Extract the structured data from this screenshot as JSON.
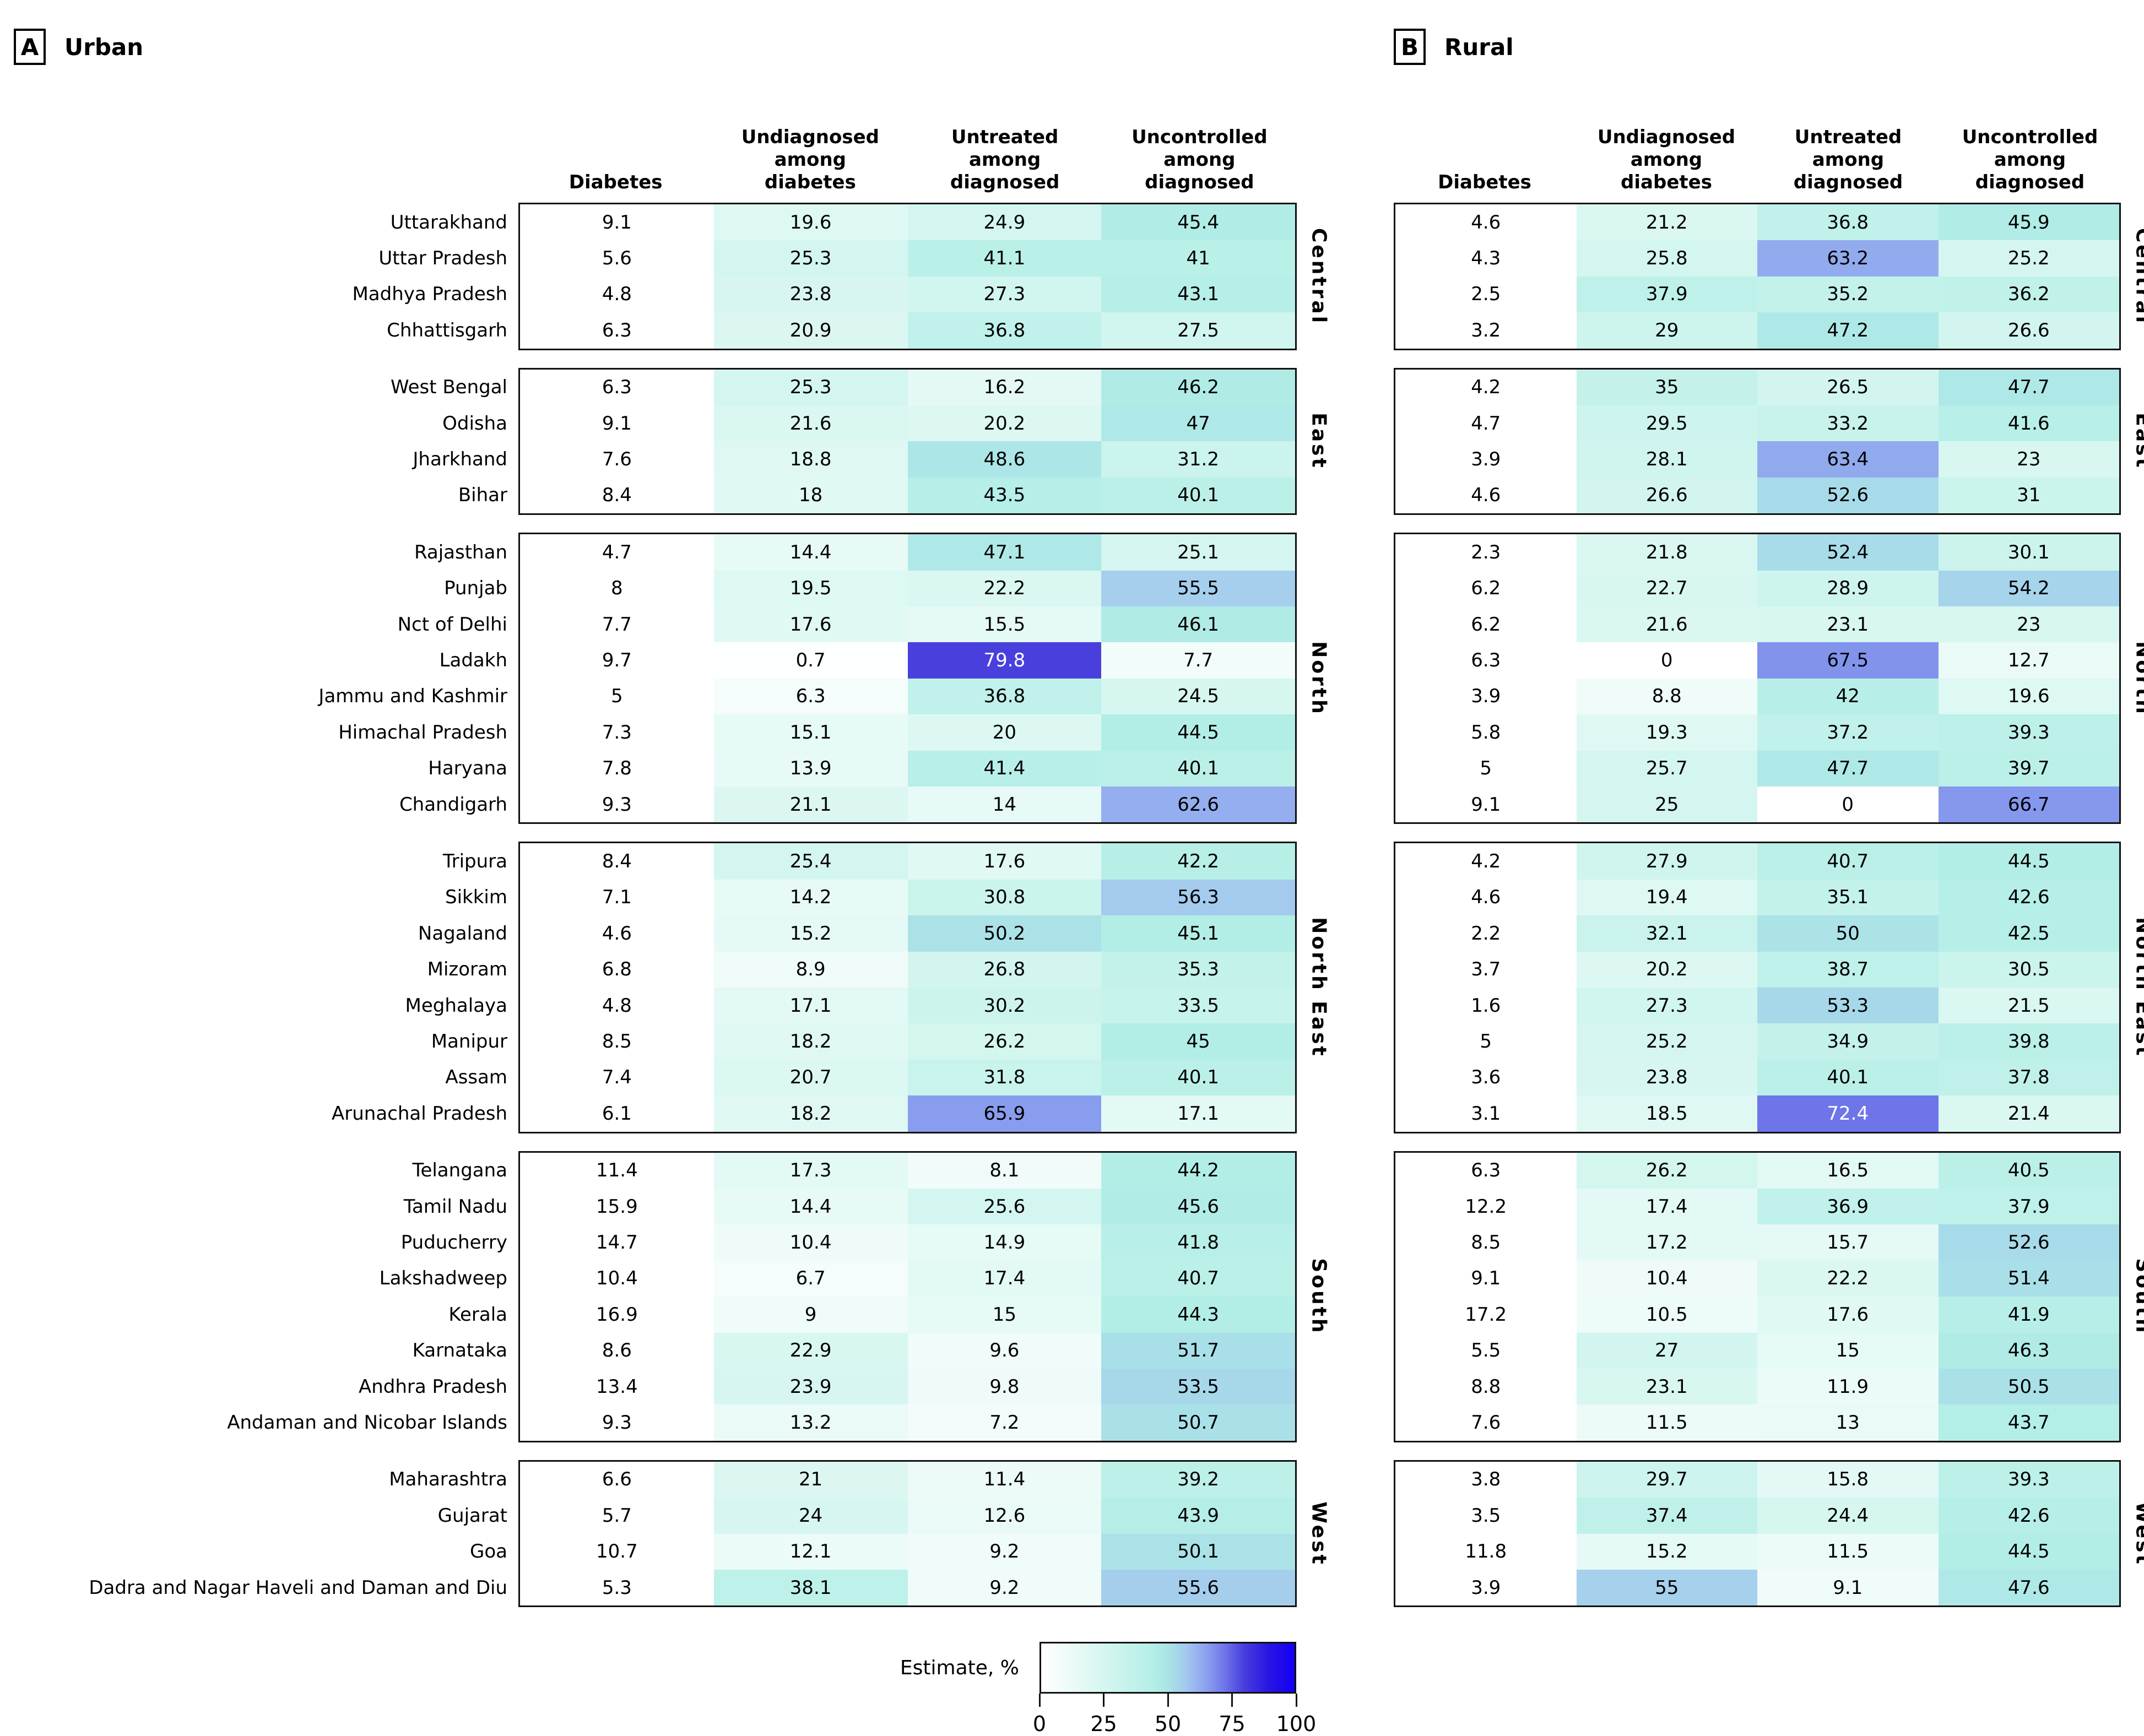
{
  "panels": [
    {
      "key": "urban",
      "letter": "A",
      "title": "Urban"
    },
    {
      "key": "rural",
      "letter": "B",
      "title": "Rural"
    }
  ],
  "chart_data": {
    "type": "heatmap",
    "value_unit": "%",
    "columns": [
      "Diabetes",
      "Undiagnosed among diabetes",
      "Untreated among diagnosed",
      "Uncontrolled among diagnosed"
    ],
    "column_lines": [
      [
        "Diabetes"
      ],
      [
        "Undiagnosed",
        "among",
        "diabetes"
      ],
      [
        "Untreated",
        "among",
        "diagnosed"
      ],
      [
        "Uncontrolled",
        "among",
        "diagnosed"
      ]
    ],
    "shaded_columns": [
      1,
      2,
      3
    ],
    "regions": [
      {
        "name": "Central",
        "states": [
          {
            "name": "Uttarakhand",
            "urban": [
              "9.1",
              "19.6",
              "24.9",
              "45.4"
            ],
            "rural": [
              "4.6",
              "21.2",
              "36.8",
              "45.9"
            ]
          },
          {
            "name": "Uttar Pradesh",
            "urban": [
              "5.6",
              "25.3",
              "41.1",
              "41"
            ],
            "rural": [
              "4.3",
              "25.8",
              "63.2",
              "25.2"
            ]
          },
          {
            "name": "Madhya Pradesh",
            "urban": [
              "4.8",
              "23.8",
              "27.3",
              "43.1"
            ],
            "rural": [
              "2.5",
              "37.9",
              "35.2",
              "36.2"
            ]
          },
          {
            "name": "Chhattisgarh",
            "urban": [
              "6.3",
              "20.9",
              "36.8",
              "27.5"
            ],
            "rural": [
              "3.2",
              "29",
              "47.2",
              "26.6"
            ]
          }
        ]
      },
      {
        "name": "East",
        "states": [
          {
            "name": "West Bengal",
            "urban": [
              "6.3",
              "25.3",
              "16.2",
              "46.2"
            ],
            "rural": [
              "4.2",
              "35",
              "26.5",
              "47.7"
            ]
          },
          {
            "name": "Odisha",
            "urban": [
              "9.1",
              "21.6",
              "20.2",
              "47"
            ],
            "rural": [
              "4.7",
              "29.5",
              "33.2",
              "41.6"
            ]
          },
          {
            "name": "Jharkhand",
            "urban": [
              "7.6",
              "18.8",
              "48.6",
              "31.2"
            ],
            "rural": [
              "3.9",
              "28.1",
              "63.4",
              "23"
            ]
          },
          {
            "name": "Bihar",
            "urban": [
              "8.4",
              "18",
              "43.5",
              "40.1"
            ],
            "rural": [
              "4.6",
              "26.6",
              "52.6",
              "31"
            ]
          }
        ]
      },
      {
        "name": "North",
        "states": [
          {
            "name": "Rajasthan",
            "urban": [
              "4.7",
              "14.4",
              "47.1",
              "25.1"
            ],
            "rural": [
              "2.3",
              "21.8",
              "52.4",
              "30.1"
            ]
          },
          {
            "name": "Punjab",
            "urban": [
              "8",
              "19.5",
              "22.2",
              "55.5"
            ],
            "rural": [
              "6.2",
              "22.7",
              "28.9",
              "54.2"
            ]
          },
          {
            "name": "Nct of Delhi",
            "urban": [
              "7.7",
              "17.6",
              "15.5",
              "46.1"
            ],
            "rural": [
              "6.2",
              "21.6",
              "23.1",
              "23"
            ]
          },
          {
            "name": "Ladakh",
            "urban": [
              "9.7",
              "0.7",
              "79.8",
              "7.7"
            ],
            "rural": [
              "6.3",
              "0",
              "67.5",
              "12.7"
            ]
          },
          {
            "name": "Jammu and Kashmir",
            "urban": [
              "5",
              "6.3",
              "36.8",
              "24.5"
            ],
            "rural": [
              "3.9",
              "8.8",
              "42",
              "19.6"
            ]
          },
          {
            "name": "Himachal Pradesh",
            "urban": [
              "7.3",
              "15.1",
              "20",
              "44.5"
            ],
            "rural": [
              "5.8",
              "19.3",
              "37.2",
              "39.3"
            ]
          },
          {
            "name": "Haryana",
            "urban": [
              "7.8",
              "13.9",
              "41.4",
              "40.1"
            ],
            "rural": [
              "5",
              "25.7",
              "47.7",
              "39.7"
            ]
          },
          {
            "name": "Chandigarh",
            "urban": [
              "9.3",
              "21.1",
              "14",
              "62.6"
            ],
            "rural": [
              "9.1",
              "25",
              "0",
              "66.7"
            ]
          }
        ]
      },
      {
        "name": "North East",
        "states": [
          {
            "name": "Tripura",
            "urban": [
              "8.4",
              "25.4",
              "17.6",
              "42.2"
            ],
            "rural": [
              "4.2",
              "27.9",
              "40.7",
              "44.5"
            ]
          },
          {
            "name": "Sikkim",
            "urban": [
              "7.1",
              "14.2",
              "30.8",
              "56.3"
            ],
            "rural": [
              "4.6",
              "19.4",
              "35.1",
              "42.6"
            ]
          },
          {
            "name": "Nagaland",
            "urban": [
              "4.6",
              "15.2",
              "50.2",
              "45.1"
            ],
            "rural": [
              "2.2",
              "32.1",
              "50",
              "42.5"
            ]
          },
          {
            "name": "Mizoram",
            "urban": [
              "6.8",
              "8.9",
              "26.8",
              "35.3"
            ],
            "rural": [
              "3.7",
              "20.2",
              "38.7",
              "30.5"
            ]
          },
          {
            "name": "Meghalaya",
            "urban": [
              "4.8",
              "17.1",
              "30.2",
              "33.5"
            ],
            "rural": [
              "1.6",
              "27.3",
              "53.3",
              "21.5"
            ]
          },
          {
            "name": "Manipur",
            "urban": [
              "8.5",
              "18.2",
              "26.2",
              "45"
            ],
            "rural": [
              "5",
              "25.2",
              "34.9",
              "39.8"
            ]
          },
          {
            "name": "Assam",
            "urban": [
              "7.4",
              "20.7",
              "31.8",
              "40.1"
            ],
            "rural": [
              "3.6",
              "23.8",
              "40.1",
              "37.8"
            ]
          },
          {
            "name": "Arunachal Pradesh",
            "urban": [
              "6.1",
              "18.2",
              "65.9",
              "17.1"
            ],
            "rural": [
              "3.1",
              "18.5",
              "72.4",
              "21.4"
            ]
          }
        ]
      },
      {
        "name": "South",
        "states": [
          {
            "name": "Telangana",
            "urban": [
              "11.4",
              "17.3",
              "8.1",
              "44.2"
            ],
            "rural": [
              "6.3",
              "26.2",
              "16.5",
              "40.5"
            ]
          },
          {
            "name": "Tamil Nadu",
            "urban": [
              "15.9",
              "14.4",
              "25.6",
              "45.6"
            ],
            "rural": [
              "12.2",
              "17.4",
              "36.9",
              "37.9"
            ]
          },
          {
            "name": "Puducherry",
            "urban": [
              "14.7",
              "10.4",
              "14.9",
              "41.8"
            ],
            "rural": [
              "8.5",
              "17.2",
              "15.7",
              "52.6"
            ]
          },
          {
            "name": "Lakshadweep",
            "urban": [
              "10.4",
              "6.7",
              "17.4",
              "40.7"
            ],
            "rural": [
              "9.1",
              "10.4",
              "22.2",
              "51.4"
            ]
          },
          {
            "name": "Kerala",
            "urban": [
              "16.9",
              "9",
              "15",
              "44.3"
            ],
            "rural": [
              "17.2",
              "10.5",
              "17.6",
              "41.9"
            ]
          },
          {
            "name": "Karnataka",
            "urban": [
              "8.6",
              "22.9",
              "9.6",
              "51.7"
            ],
            "rural": [
              "5.5",
              "27",
              "15",
              "46.3"
            ]
          },
          {
            "name": "Andhra Pradesh",
            "urban": [
              "13.4",
              "23.9",
              "9.8",
              "53.5"
            ],
            "rural": [
              "8.8",
              "23.1",
              "11.9",
              "50.5"
            ]
          },
          {
            "name": "Andaman and Nicobar Islands",
            "urban": [
              "9.3",
              "13.2",
              "7.2",
              "50.7"
            ],
            "rural": [
              "7.6",
              "11.5",
              "13",
              "43.7"
            ]
          }
        ]
      },
      {
        "name": "West",
        "states": [
          {
            "name": "Maharashtra",
            "urban": [
              "6.6",
              "21",
              "11.4",
              "39.2"
            ],
            "rural": [
              "3.8",
              "29.7",
              "15.8",
              "39.3"
            ]
          },
          {
            "name": "Gujarat",
            "urban": [
              "5.7",
              "24",
              "12.6",
              "43.9"
            ],
            "rural": [
              "3.5",
              "37.4",
              "24.4",
              "42.6"
            ]
          },
          {
            "name": "Goa",
            "urban": [
              "10.7",
              "12.1",
              "9.2",
              "50.1"
            ],
            "rural": [
              "11.8",
              "15.2",
              "11.5",
              "44.5"
            ]
          },
          {
            "name": "Dadra and Nagar Haveli and Daman and Diu",
            "urban": [
              "5.3",
              "38.1",
              "9.2",
              "55.6"
            ],
            "rural": [
              "3.9",
              "55",
              "9.1",
              "47.6"
            ]
          }
        ]
      }
    ],
    "legend": {
      "label": "Estimate, %",
      "ticks": [
        "0",
        "25",
        "50",
        "75",
        "100"
      ],
      "min": 0,
      "max": 100
    },
    "colormap": {
      "stops": [
        [
          0,
          "#ffffff"
        ],
        [
          25,
          "#d5f6f0"
        ],
        [
          45,
          "#b2eee6"
        ],
        [
          52,
          "#a8dee8"
        ],
        [
          58,
          "#a3c4f0"
        ],
        [
          65,
          "#8ca2ee"
        ],
        [
          72,
          "#7078e9"
        ],
        [
          80,
          "#483edd"
        ],
        [
          90,
          "#2814e1"
        ],
        [
          100,
          "#1200f5"
        ]
      ],
      "white_text_threshold": 70
    }
  }
}
